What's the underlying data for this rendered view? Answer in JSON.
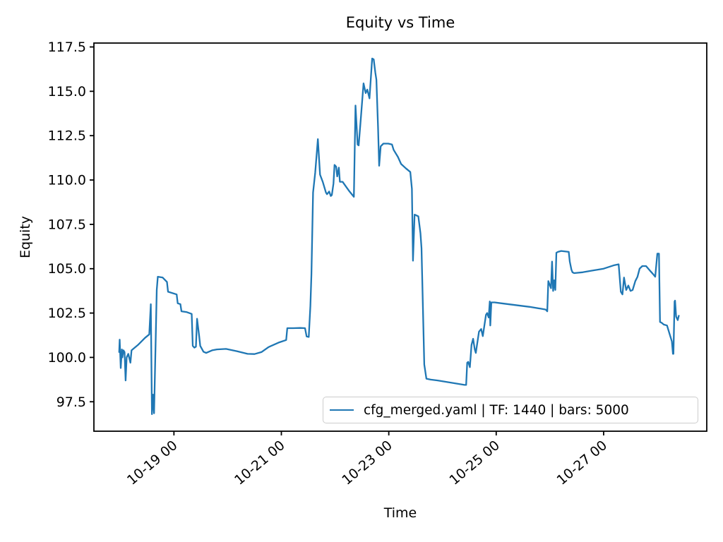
{
  "figure": {
    "title": "Equity vs Time",
    "background": "#ffffff"
  },
  "chart_data": {
    "type": "line",
    "title": "Equity vs Time",
    "xlabel": "Time",
    "ylabel": "Equity",
    "legend": [
      "cfg_merged.yaml | TF: 1440 | bars: 5000"
    ],
    "legend_position": "lower right",
    "line_color": "#1f77b4",
    "axis_color": "#000000",
    "grid": false,
    "x_unit": "days, 0 = 10-18 00",
    "xlim": [
      -0.49,
      10.92
    ],
    "ylim": [
      95.84,
      117.72
    ],
    "x_ticks": {
      "positions": [
        1,
        3,
        5,
        7,
        9
      ],
      "labels": [
        "10-19 00",
        "10-21 00",
        "10-23 00",
        "10-25 00",
        "10-27 00"
      ],
      "rotation": 40
    },
    "y_ticks": [
      97.5,
      100.0,
      102.5,
      105.0,
      107.5,
      110.0,
      112.5,
      115.0,
      117.5
    ],
    "points": [
      [
        -0.02,
        100.3
      ],
      [
        -0.01,
        101.0
      ],
      [
        0.01,
        99.4
      ],
      [
        0.03,
        100.45
      ],
      [
        0.04,
        100.0
      ],
      [
        0.06,
        100.4
      ],
      [
        0.08,
        100.3
      ],
      [
        0.1,
        98.7
      ],
      [
        0.12,
        100.0
      ],
      [
        0.15,
        100.2
      ],
      [
        0.19,
        99.7
      ],
      [
        0.21,
        100.4
      ],
      [
        0.33,
        100.7
      ],
      [
        0.46,
        101.1
      ],
      [
        0.54,
        101.3
      ],
      [
        0.57,
        103.0
      ],
      [
        0.59,
        96.8
      ],
      [
        0.61,
        97.9
      ],
      [
        0.63,
        96.85
      ],
      [
        0.66,
        101.0
      ],
      [
        0.68,
        103.8
      ],
      [
        0.7,
        104.55
      ],
      [
        0.79,
        104.5
      ],
      [
        0.87,
        104.25
      ],
      [
        0.89,
        103.7
      ],
      [
        1.05,
        103.55
      ],
      [
        1.07,
        103.05
      ],
      [
        1.12,
        103.0
      ],
      [
        1.14,
        102.6
      ],
      [
        1.24,
        102.55
      ],
      [
        1.33,
        102.45
      ],
      [
        1.35,
        100.65
      ],
      [
        1.38,
        100.55
      ],
      [
        1.41,
        100.6
      ],
      [
        1.43,
        102.18
      ],
      [
        1.47,
        101.2
      ],
      [
        1.49,
        100.65
      ],
      [
        1.55,
        100.32
      ],
      [
        1.6,
        100.25
      ],
      [
        1.71,
        100.4
      ],
      [
        1.8,
        100.45
      ],
      [
        1.97,
        100.48
      ],
      [
        2.17,
        100.35
      ],
      [
        2.37,
        100.2
      ],
      [
        2.5,
        100.19
      ],
      [
        2.63,
        100.3
      ],
      [
        2.76,
        100.58
      ],
      [
        2.96,
        100.85
      ],
      [
        3.09,
        100.98
      ],
      [
        3.11,
        101.65
      ],
      [
        3.22,
        101.65
      ],
      [
        3.35,
        101.66
      ],
      [
        3.44,
        101.65
      ],
      [
        3.47,
        101.18
      ],
      [
        3.51,
        101.15
      ],
      [
        3.54,
        102.9
      ],
      [
        3.56,
        104.7
      ],
      [
        3.59,
        109.3
      ],
      [
        3.63,
        110.4
      ],
      [
        3.68,
        112.3
      ],
      [
        3.72,
        110.3
      ],
      [
        3.77,
        109.9
      ],
      [
        3.83,
        109.3
      ],
      [
        3.85,
        109.2
      ],
      [
        3.89,
        109.35
      ],
      [
        3.92,
        109.1
      ],
      [
        3.94,
        109.15
      ],
      [
        3.97,
        109.8
      ],
      [
        3.99,
        110.85
      ],
      [
        4.02,
        110.75
      ],
      [
        4.04,
        110.2
      ],
      [
        4.07,
        110.7
      ],
      [
        4.09,
        109.9
      ],
      [
        4.14,
        109.9
      ],
      [
        4.21,
        109.6
      ],
      [
        4.27,
        109.35
      ],
      [
        4.35,
        109.05
      ],
      [
        4.38,
        114.2
      ],
      [
        4.42,
        112.0
      ],
      [
        4.44,
        111.95
      ],
      [
        4.48,
        113.5
      ],
      [
        4.53,
        115.45
      ],
      [
        4.57,
        114.9
      ],
      [
        4.6,
        115.1
      ],
      [
        4.64,
        114.6
      ],
      [
        4.69,
        116.85
      ],
      [
        4.72,
        116.8
      ],
      [
        4.75,
        116.05
      ],
      [
        4.77,
        115.65
      ],
      [
        4.8,
        113.0
      ],
      [
        4.82,
        110.8
      ],
      [
        4.85,
        111.9
      ],
      [
        4.9,
        112.05
      ],
      [
        4.99,
        112.05
      ],
      [
        5.06,
        112.0
      ],
      [
        5.09,
        111.7
      ],
      [
        5.17,
        111.3
      ],
      [
        5.23,
        110.9
      ],
      [
        5.32,
        110.65
      ],
      [
        5.4,
        110.45
      ],
      [
        5.43,
        109.5
      ],
      [
        5.45,
        105.45
      ],
      [
        5.48,
        108.05
      ],
      [
        5.55,
        107.95
      ],
      [
        5.59,
        107.0
      ],
      [
        5.61,
        106.15
      ],
      [
        5.66,
        99.6
      ],
      [
        5.7,
        98.8
      ],
      [
        5.78,
        98.75
      ],
      [
        5.91,
        98.7
      ],
      [
        6.11,
        98.6
      ],
      [
        6.31,
        98.5
      ],
      [
        6.41,
        98.45
      ],
      [
        6.44,
        98.45
      ],
      [
        6.46,
        99.7
      ],
      [
        6.48,
        99.75
      ],
      [
        6.51,
        99.45
      ],
      [
        6.54,
        100.7
      ],
      [
        6.57,
        101.05
      ],
      [
        6.6,
        100.45
      ],
      [
        6.62,
        100.25
      ],
      [
        6.68,
        101.45
      ],
      [
        6.72,
        101.6
      ],
      [
        6.75,
        101.2
      ],
      [
        6.81,
        102.4
      ],
      [
        6.83,
        102.5
      ],
      [
        6.86,
        102.25
      ],
      [
        6.88,
        103.15
      ],
      [
        6.89,
        101.8
      ],
      [
        6.91,
        103.1
      ],
      [
        6.97,
        103.1
      ],
      [
        7.1,
        103.05
      ],
      [
        7.36,
        102.95
      ],
      [
        7.62,
        102.85
      ],
      [
        7.82,
        102.75
      ],
      [
        7.92,
        102.7
      ],
      [
        7.95,
        102.6
      ],
      [
        7.97,
        104.3
      ],
      [
        8.02,
        103.9
      ],
      [
        8.04,
        105.4
      ],
      [
        8.06,
        103.75
      ],
      [
        8.08,
        104.35
      ],
      [
        8.1,
        103.8
      ],
      [
        8.12,
        105.9
      ],
      [
        8.15,
        105.95
      ],
      [
        8.21,
        106.0
      ],
      [
        8.35,
        105.95
      ],
      [
        8.37,
        105.4
      ],
      [
        8.4,
        104.95
      ],
      [
        8.42,
        104.8
      ],
      [
        8.45,
        104.75
      ],
      [
        8.61,
        104.8
      ],
      [
        8.8,
        104.9
      ],
      [
        9.0,
        105.0
      ],
      [
        9.2,
        105.2
      ],
      [
        9.28,
        105.25
      ],
      [
        9.32,
        103.7
      ],
      [
        9.35,
        103.55
      ],
      [
        9.38,
        104.5
      ],
      [
        9.42,
        103.8
      ],
      [
        9.46,
        104.05
      ],
      [
        9.5,
        103.75
      ],
      [
        9.54,
        103.8
      ],
      [
        9.59,
        104.3
      ],
      [
        9.63,
        104.55
      ],
      [
        9.67,
        105.0
      ],
      [
        9.72,
        105.15
      ],
      [
        9.79,
        105.15
      ],
      [
        9.86,
        104.9
      ],
      [
        9.92,
        104.7
      ],
      [
        9.96,
        104.55
      ],
      [
        10.0,
        105.85
      ],
      [
        10.03,
        105.85
      ],
      [
        10.05,
        102.0
      ],
      [
        10.08,
        101.95
      ],
      [
        10.12,
        101.85
      ],
      [
        10.18,
        101.8
      ],
      [
        10.24,
        101.2
      ],
      [
        10.27,
        100.9
      ],
      [
        10.29,
        100.2
      ],
      [
        10.3,
        100.2
      ],
      [
        10.32,
        103.15
      ],
      [
        10.33,
        103.2
      ],
      [
        10.35,
        102.3
      ],
      [
        10.38,
        102.1
      ],
      [
        10.4,
        102.35
      ]
    ]
  }
}
